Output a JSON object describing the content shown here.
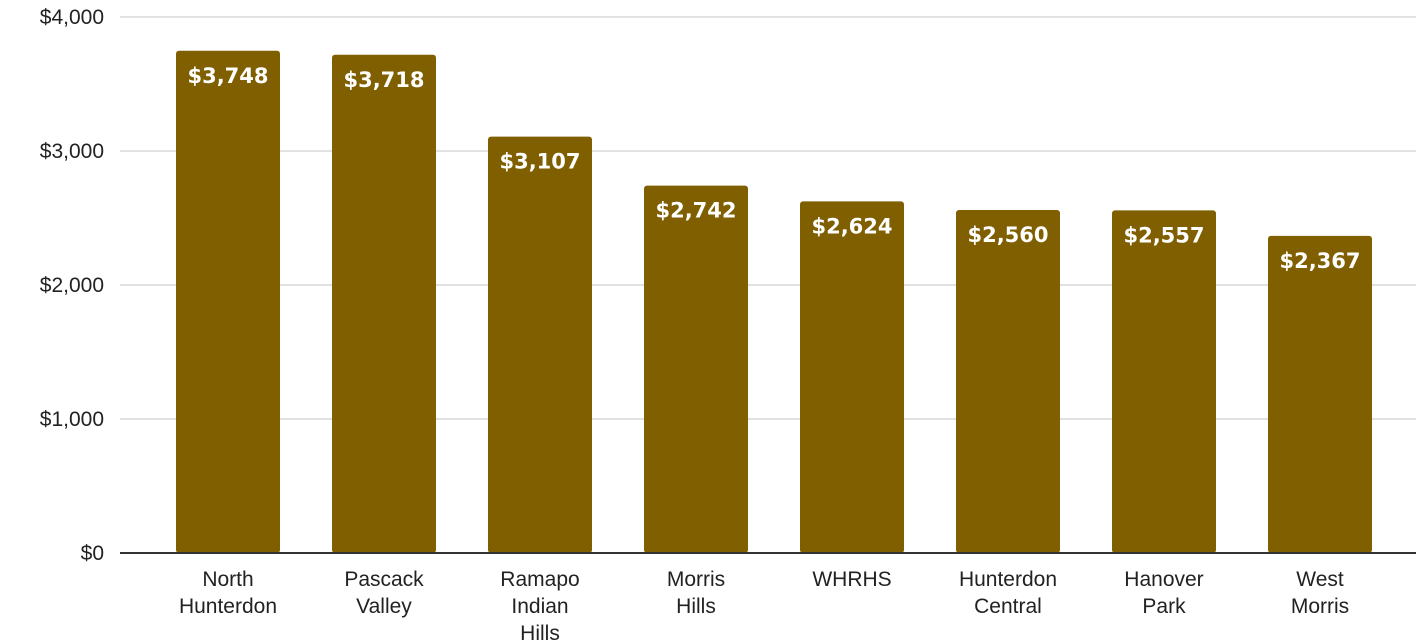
{
  "chart_data": {
    "type": "bar",
    "categories": [
      [
        "North",
        "Hunterdon"
      ],
      [
        "Pascack",
        "Valley"
      ],
      [
        "Ramapo",
        "Indian",
        "Hills"
      ],
      [
        "Morris",
        "Hills"
      ],
      [
        "WHRHS"
      ],
      [
        "Hunterdon",
        "Central"
      ],
      [
        "Hanover",
        "Park"
      ],
      [
        "West",
        "Morris"
      ]
    ],
    "values": [
      3748,
      3718,
      3107,
      2742,
      2624,
      2560,
      2557,
      2367
    ],
    "data_labels": [
      "$3,748",
      "$3,718",
      "$3,107",
      "$2,742",
      "$2,624",
      "$2,560",
      "$2,557",
      "$2,367"
    ],
    "y_ticks": [
      0,
      1000,
      2000,
      3000,
      4000
    ],
    "y_tick_labels": [
      "$0",
      "$1,000",
      "$2,000",
      "$3,000",
      "$4,000"
    ],
    "ylim": [
      0,
      4000
    ],
    "title": "",
    "xlabel": "",
    "ylabel": "",
    "grid": true,
    "legend": "none",
    "bar_color": "#7f5f00",
    "gridline_color": "#d9d9d9",
    "axis_color": "#333333",
    "text_color": "#222222",
    "label_color": "#ffffff"
  }
}
